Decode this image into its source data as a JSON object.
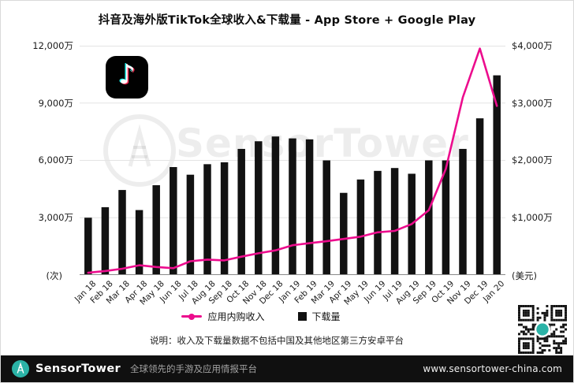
{
  "title": "抖音及海外版TikTok全球收入&下载量 - App Store + Google Play",
  "watermark": "SensorTower",
  "axis": {
    "left_unit": "(次)",
    "right_unit": "(美元)",
    "left_ticks": [
      "12,000万",
      "9,000万",
      "6,000万",
      "3,000万"
    ],
    "right_ticks": [
      "$4,000万",
      "$3,000万",
      "$2,000万",
      "$1,000万"
    ]
  },
  "legend": {
    "revenue": "应用内购收入",
    "downloads": "下载量"
  },
  "note": "说明：收入及下载量数据不包括中国及其他地区第三方安卓平台",
  "footer": {
    "brand": "SensorTower",
    "tagline": "全球领先的手游及应用情报平台",
    "website": "www.sensortower-china.com"
  },
  "colors": {
    "revenue_line": "#ec0c8d",
    "downloads_bar": "#121212",
    "footer_teal": "#2bb3a7",
    "gridline": "#e4e4e4"
  },
  "chart_data": {
    "type": "bar",
    "subtype": "bar+line dual-axis",
    "title": "抖音及海外版TikTok全球收入&下载量 - App Store + Google Play",
    "categories": [
      "Jan 18",
      "Feb 18",
      "Mar 18",
      "Apr 18",
      "May 18",
      "Jun 18",
      "Jul 18",
      "Aug 18",
      "Sep 18",
      "Oct 18",
      "Nov 18",
      "Dec 18",
      "Jan 19",
      "Feb 19",
      "Mar 19",
      "Apr 19",
      "May 19",
      "Jun 19",
      "Jul 19",
      "Aug 19",
      "Sep 19",
      "Oct 19",
      "Nov 19",
      "Dec 19",
      "Jan 20"
    ],
    "series": [
      {
        "name": "下载量",
        "type": "bar",
        "axis": "left",
        "unit": "万次",
        "values": [
          3000,
          3550,
          4450,
          3400,
          4700,
          5650,
          5250,
          5800,
          5900,
          6600,
          7000,
          7250,
          7150,
          7100,
          6000,
          4300,
          5000,
          5450,
          5600,
          5300,
          6000,
          6000,
          6600,
          8200,
          10450
        ]
      },
      {
        "name": "应用内购收入",
        "type": "line",
        "axis": "right",
        "unit": "万美元",
        "values": [
          40,
          70,
          110,
          170,
          140,
          120,
          240,
          270,
          255,
          320,
          380,
          430,
          520,
          555,
          590,
          630,
          670,
          745,
          770,
          890,
          1130,
          1850,
          3100,
          3950,
          2950
        ]
      }
    ],
    "left_axis": {
      "label": "(次)",
      "max": 12000,
      "min": 0,
      "ticks": [
        3000,
        6000,
        9000,
        12000
      ]
    },
    "right_axis": {
      "label": "(美元)",
      "max": 4000,
      "min": 0,
      "ticks": [
        1000,
        2000,
        3000,
        4000
      ]
    },
    "grid": true,
    "legend_position": "bottom"
  }
}
